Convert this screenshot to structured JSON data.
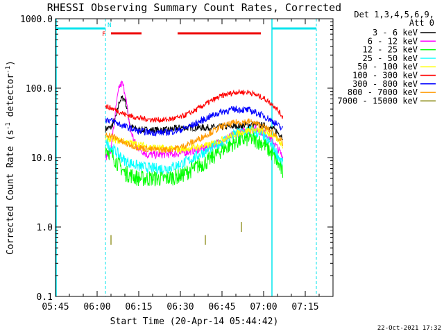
{
  "chart_data": {
    "type": "line",
    "title": "RHESSI Observing Summary Count Rates, Corrected",
    "xlabel": "Start Time (20-Apr-14 05:44:42)",
    "ylabel_main": "Corrected Count Rate (s",
    "ylabel_sup1": "-1",
    "ylabel_mid": " detector",
    "ylabel_sup2": "-1",
    "ylabel_end": ")",
    "footer_date": "22-Oct-2021 17:32",
    "detectors_line1": "Det 1,3,4,5,6,9,",
    "detectors_line2": "Att 0",
    "y_scale": "log",
    "ylim": [
      0.1,
      1000.0
    ],
    "xlim": [
      "05:45",
      "07:25"
    ],
    "y_ticks": [
      {
        "value": 0.1,
        "label": "0.1"
      },
      {
        "value": 1.0,
        "label": "1.0"
      },
      {
        "value": 10.0,
        "label": "10.0"
      },
      {
        "value": 100.0,
        "label": "100.0"
      },
      {
        "value": 1000.0,
        "label": "1000.0"
      }
    ],
    "x_ticks": [
      "05:45",
      "06:00",
      "06:15",
      "06:30",
      "06:45",
      "07:00",
      "07:15"
    ],
    "legend": {
      "placement": "right"
    },
    "series": [
      {
        "name": "3 - 6 keV",
        "color": "#000000",
        "x": [
          "06:03",
          "06:05",
          "06:07",
          "06:08",
          "06:09",
          "06:10",
          "06:11",
          "06:12",
          "06:15",
          "06:25",
          "06:30",
          "06:40",
          "06:48",
          "06:53",
          "06:57",
          "07:01",
          "07:04",
          "07:07"
        ],
        "values": [
          26,
          27,
          40,
          65,
          72,
          70,
          45,
          28,
          25,
          25,
          27,
          27,
          28,
          29,
          30,
          28,
          25,
          20
        ]
      },
      {
        "name": "6 - 12 keV",
        "color": "#ff00ff",
        "x": [
          "06:03",
          "06:05",
          "06:07",
          "06:08",
          "06:09",
          "06:10",
          "06:11",
          "06:12",
          "06:14",
          "06:18",
          "06:22",
          "06:30",
          "06:40",
          "06:48",
          "06:53",
          "06:57",
          "07:01",
          "07:04",
          "07:07"
        ],
        "values": [
          10,
          13,
          60,
          105,
          118,
          90,
          45,
          25,
          15,
          11,
          11,
          11.5,
          14,
          20,
          24,
          26,
          22,
          16,
          10
        ]
      },
      {
        "name": "12 - 25 keV",
        "color": "#00ff00",
        "x": [
          "06:03",
          "06:06",
          "06:10",
          "06:15",
          "06:20",
          "06:25",
          "06:30",
          "06:35",
          "06:40",
          "06:45",
          "06:50",
          "06:55",
          "07:00",
          "07:04",
          "07:07"
        ],
        "values": [
          14,
          10,
          6,
          5,
          5,
          5,
          5.5,
          7,
          9,
          13,
          17,
          19,
          16,
          10,
          6
        ]
      },
      {
        "name": "25 - 50 keV",
        "color": "#00ffff",
        "x": [
          "06:03",
          "06:06",
          "06:10",
          "06:15",
          "06:20",
          "06:25",
          "06:30",
          "06:35",
          "06:40",
          "06:45",
          "06:50",
          "06:55",
          "07:00",
          "07:04",
          "07:07"
        ],
        "values": [
          17,
          13,
          9,
          7.5,
          7,
          7,
          8,
          10,
          13,
          17,
          22,
          25,
          21,
          13,
          8
        ]
      },
      {
        "name": "50 - 100 keV",
        "color": "#ffff00",
        "x": [
          "06:03",
          "06:10",
          "06:20",
          "06:30",
          "06:40",
          "06:50",
          "06:55",
          "07:00",
          "07:04",
          "07:07"
        ],
        "values": [
          19,
          17,
          14,
          13,
          15,
          22,
          25,
          24,
          20,
          15
        ]
      },
      {
        "name": "100 - 300 keV",
        "color": "#ff0000",
        "x": [
          "06:03",
          "06:06",
          "06:10",
          "06:15",
          "06:20",
          "06:25",
          "06:30",
          "06:35",
          "06:40",
          "06:45",
          "06:50",
          "06:55",
          "07:00",
          "07:04",
          "07:07"
        ],
        "values": [
          55,
          50,
          42,
          37,
          35,
          35,
          38,
          47,
          62,
          78,
          88,
          87,
          72,
          55,
          38
        ]
      },
      {
        "name": "300 - 800 keV",
        "color": "#0000ff",
        "x": [
          "06:03",
          "06:06",
          "06:10",
          "06:15",
          "06:20",
          "06:25",
          "06:30",
          "06:35",
          "06:40",
          "06:45",
          "06:50",
          "06:55",
          "07:00",
          "07:04",
          "07:07"
        ],
        "values": [
          36,
          33,
          28,
          24,
          23,
          23,
          25,
          30,
          38,
          46,
          50,
          48,
          40,
          32,
          25
        ]
      },
      {
        "name": "800 - 7000 keV",
        "color": "#ff9900",
        "x": [
          "06:03",
          "06:06",
          "06:10",
          "06:15",
          "06:20",
          "06:25",
          "06:30",
          "06:35",
          "06:40",
          "06:45",
          "06:50",
          "06:55",
          "07:00",
          "07:04",
          "07:07"
        ],
        "values": [
          22,
          20,
          16,
          14,
          13,
          13,
          14,
          17,
          22,
          28,
          32,
          33,
          28,
          22,
          16
        ]
      },
      {
        "name": "7000 - 15000 keV",
        "color": "#808000",
        "x": [
          "06:05",
          "06:39",
          "06:52"
        ],
        "values": [
          0.65,
          0.65,
          1.0
        ]
      }
    ],
    "annotations": {
      "night_label": "N",
      "flare_label": "F",
      "night_intervals": [
        [
          "05:45",
          "06:03"
        ],
        [
          "07:03",
          "07:19"
        ]
      ],
      "flare_intervals": [
        [
          "06:05",
          "06:16"
        ],
        [
          "06:29",
          "06:59"
        ]
      ]
    }
  }
}
